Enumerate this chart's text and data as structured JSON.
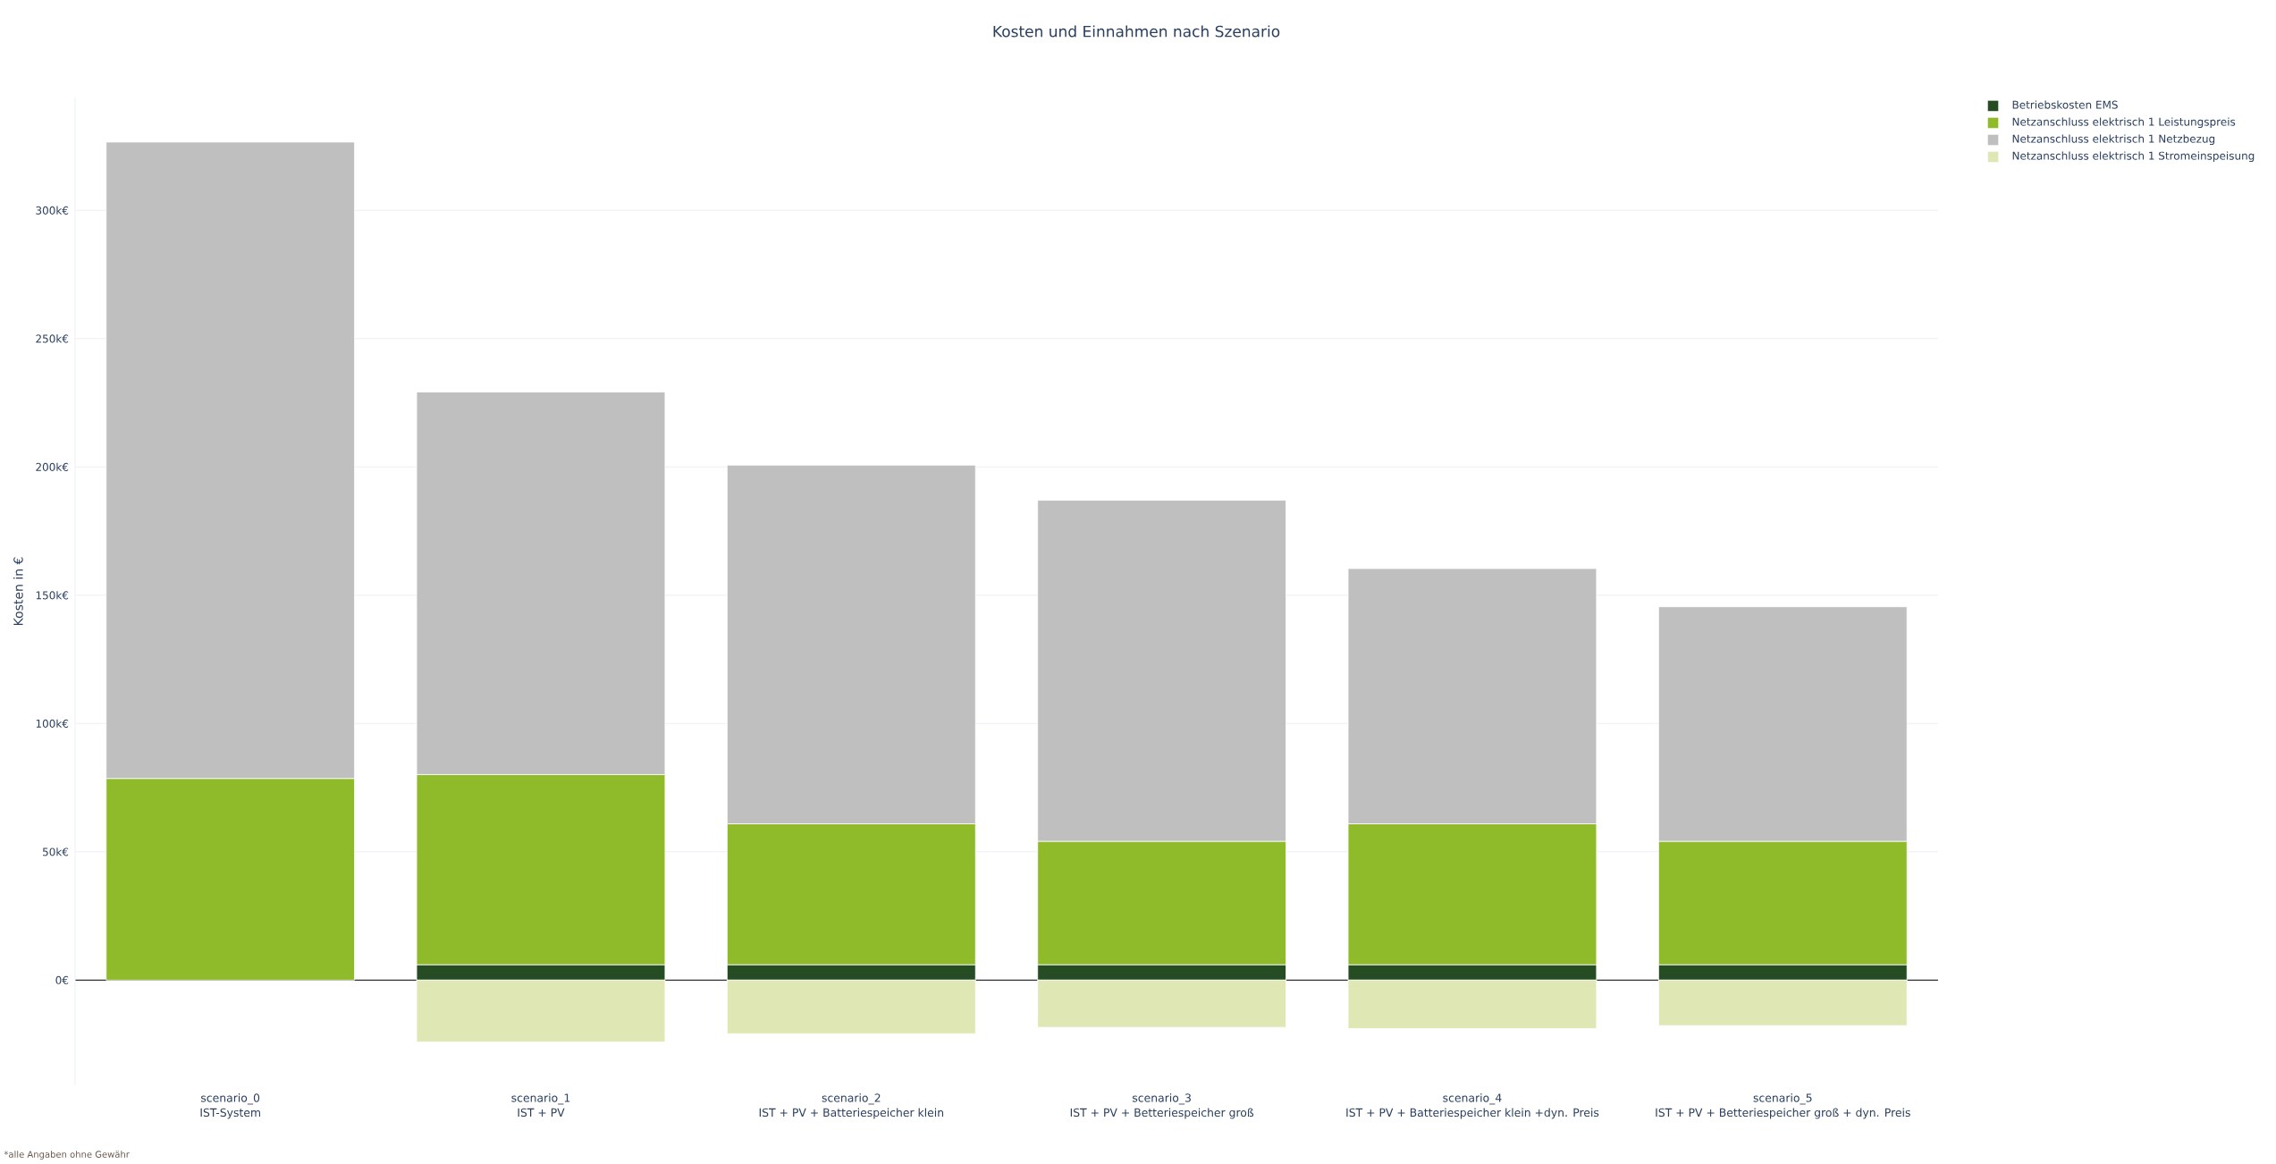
{
  "chart_data": {
    "type": "bar",
    "stacked": true,
    "title": "Kosten und Einnahmen nach Szenario",
    "ylabel": "Kosten in €",
    "annotations": [
      "*alle Angaben ohne Gewähr"
    ],
    "categories": [
      "scenario_0 IST-System",
      "scenario_1 IST + PV",
      "scenario_2 IST + PV + Batteriespeicher klein",
      "scenario_3 IST + PV + Betteriespeicher groß",
      "scenario_4 IST + PV + Batteriespeicher klein +dyn. Preis",
      "scenario_5 IST + PV + Betteriespeicher groß + dyn. Preis"
    ],
    "series": [
      {
        "name": "Betriebskosten EMS",
        "color": "#254c23",
        "values": [
          null,
          6000,
          6000,
          6000,
          6000,
          6000
        ]
      },
      {
        "name": "Netzanschluss elektrisch 1 Leistungspreis",
        "color": "#8fba29",
        "values": [
          78600,
          74100,
          54900,
          48100,
          54900,
          48100
        ]
      },
      {
        "name": "Netzanschluss elektrisch 1 Netzbezug",
        "color": "#bfbfbf",
        "values": [
          248000,
          149100,
          139800,
          132900,
          99500,
          91400
        ]
      },
      {
        "name": "Netzanschluss elektrisch 1 Stromeinspeisung",
        "color": "#dfe7b5",
        "values": [
          null,
          -24100,
          -20900,
          -18400,
          -18900,
          -17700
        ]
      }
    ],
    "ylim": [
      -41000,
      344000
    ],
    "yticks": [
      {
        "value": 0,
        "label": "0€"
      },
      {
        "value": 50000,
        "label": "50k€"
      },
      {
        "value": 100000,
        "label": "100k€"
      },
      {
        "value": 150000,
        "label": "150k€"
      },
      {
        "value": 200000,
        "label": "200k€"
      },
      {
        "value": 250000,
        "label": "250k€"
      },
      {
        "value": 300000,
        "label": "300k€"
      }
    ],
    "grid": "y",
    "legend": "top right"
  }
}
